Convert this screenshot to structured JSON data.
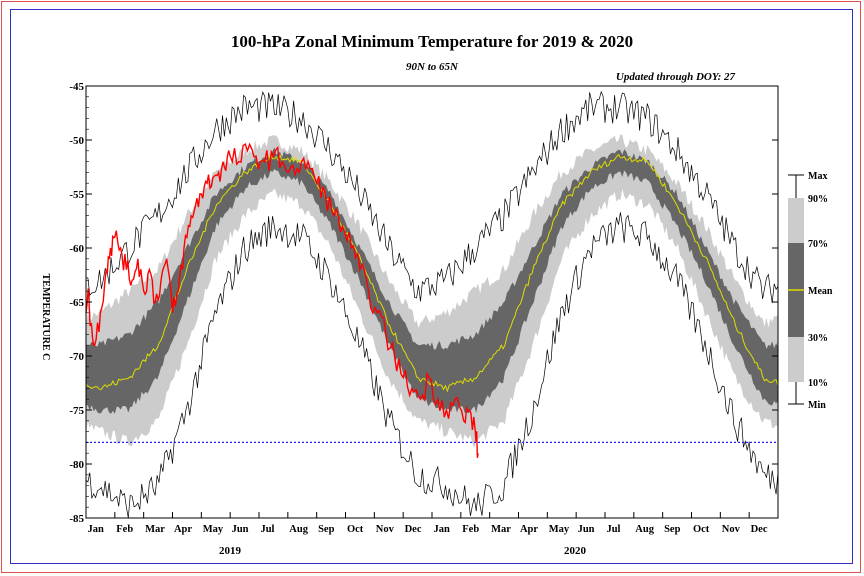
{
  "chart_data": {
    "type": "area",
    "title": "100-hPa Zonal Minimum Temperature for 2019 & 2020",
    "subtitle": "90N to 65N",
    "update_note": "Updated through DOY:  27",
    "ylabel": "TEMPERATURE C",
    "ylim": [
      -85,
      -45
    ],
    "y_ticks": [
      -45,
      -50,
      -55,
      -60,
      -65,
      -70,
      -75,
      -80,
      -85
    ],
    "x_ticks": [
      "Jan",
      "Feb",
      "Mar",
      "Apr",
      "May",
      "Jun",
      "Jul",
      "Aug",
      "Sep",
      "Oct",
      "Nov",
      "Dec",
      "Jan",
      "Feb",
      "Mar",
      "Apr",
      "May",
      "Jun",
      "Jul",
      "Aug",
      "Sep",
      "Oct",
      "Nov",
      "Dec"
    ],
    "year_labels": [
      "2019",
      "2020"
    ],
    "reference_line": -78,
    "climatology": {
      "months": [
        1,
        2,
        3,
        4,
        5,
        6,
        7,
        8,
        9,
        10,
        11,
        12,
        13
      ],
      "max": [
        -63,
        -60,
        -57,
        -53,
        -49,
        -47,
        -47,
        -48,
        -51,
        -55,
        -60,
        -64,
        -63
      ],
      "p90": [
        -66,
        -64,
        -62,
        -57,
        -53,
        -51,
        -50,
        -51,
        -54,
        -58,
        -63,
        -67,
        -66
      ],
      "p70": [
        -69,
        -68,
        -65,
        -60,
        -55,
        -52.5,
        -51,
        -52,
        -55,
        -60,
        -65,
        -69,
        -69
      ],
      "mean": [
        -73,
        -72,
        -69,
        -62,
        -56,
        -53,
        -51.5,
        -52,
        -56,
        -61,
        -67,
        -72,
        -73
      ],
      "p30": [
        -75,
        -75,
        -72,
        -65,
        -58,
        -54.5,
        -53,
        -54,
        -58,
        -63,
        -69,
        -74,
        -75
      ],
      "p10": [
        -77,
        -78,
        -76,
        -69,
        -61,
        -57,
        -55,
        -56,
        -60,
        -66,
        -72,
        -76,
        -77
      ],
      "min": [
        -82,
        -84,
        -82,
        -75,
        -66,
        -60,
        -58,
        -59,
        -63,
        -69,
        -76,
        -81,
        -82
      ]
    },
    "series": [
      {
        "color": "#ff0000",
        "x": [
          0.0,
          0.1,
          0.15,
          0.3,
          0.5,
          0.7,
          0.85,
          1.0,
          1.2,
          1.4,
          1.6,
          1.8,
          2.0,
          2.2,
          2.4,
          2.6,
          2.8,
          3.0,
          3.2,
          3.4,
          3.6,
          3.8,
          4.0,
          4.2,
          4.4,
          4.6,
          4.8,
          5.0,
          5.3,
          5.6,
          5.9,
          6.2,
          6.5,
          6.8,
          7.1,
          7.4,
          7.7,
          8.0,
          8.3,
          8.6,
          8.9,
          9.2,
          9.5,
          9.8,
          10.1,
          10.4,
          10.7,
          11.0,
          11.3,
          11.6,
          11.9,
          12.2,
          12.5,
          12.8,
          13.1,
          13.3,
          13.5,
          13.6
        ],
        "values": [
          -66,
          -64,
          -67,
          -69,
          -66,
          -62,
          -60,
          -59,
          -60,
          -62,
          -63,
          -61,
          -64,
          -62,
          -65,
          -63,
          -61,
          -66,
          -64,
          -60,
          -58,
          -56,
          -55,
          -54,
          -53.5,
          -53,
          -52.5,
          -51.5,
          -52,
          -51,
          -51.5,
          -52,
          -51.5,
          -52,
          -52.5,
          -53,
          -52,
          -54,
          -55,
          -57,
          -58,
          -60,
          -62,
          -64,
          -66,
          -68,
          -70,
          -72,
          -73,
          -74,
          -72,
          -74,
          -75,
          -74,
          -76,
          -75,
          -77,
          -79
        ]
      }
    ],
    "legend": [
      "Max",
      "90%",
      "70%",
      "Mean",
      "30%",
      "10%",
      "Min"
    ],
    "colors": {
      "band_outer": "#cccccc",
      "band_inner": "#666666",
      "mean": "#dddd00",
      "extremes": "#000000",
      "observed": "#ff0000",
      "reference": "#2020ff"
    }
  }
}
